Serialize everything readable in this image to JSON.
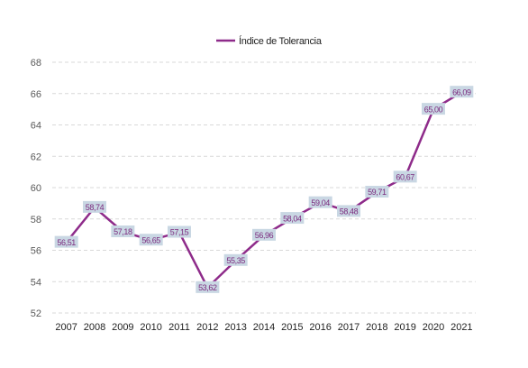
{
  "chart_data": {
    "type": "line",
    "categories": [
      "2007",
      "2008",
      "2009",
      "2010",
      "2011",
      "2012",
      "2013",
      "2014",
      "2015",
      "2016",
      "2017",
      "2018",
      "2019",
      "2020",
      "2021"
    ],
    "series": [
      {
        "name": "Índice de Tolerancia",
        "values": [
          56.51,
          58.74,
          57.18,
          56.65,
          57.15,
          53.62,
          55.35,
          56.96,
          58.04,
          59.04,
          58.48,
          59.71,
          60.67,
          65.0,
          66.09
        ],
        "labels": [
          "56,51",
          "58,74",
          "57,18",
          "56,65",
          "57,15",
          "53,62",
          "55,35",
          "56,96",
          "58,04",
          "59,04",
          "58,48",
          "59,71",
          "60,67",
          "65,00",
          "66,09"
        ],
        "color": "#8e2b8a"
      }
    ],
    "y_ticks": [
      "52",
      "54",
      "56",
      "58",
      "60",
      "62",
      "64",
      "66",
      "68"
    ],
    "ylim": [
      52,
      68
    ],
    "grid": true,
    "legend_position": "top-center",
    "label_box_color": "#c9d7e3"
  }
}
